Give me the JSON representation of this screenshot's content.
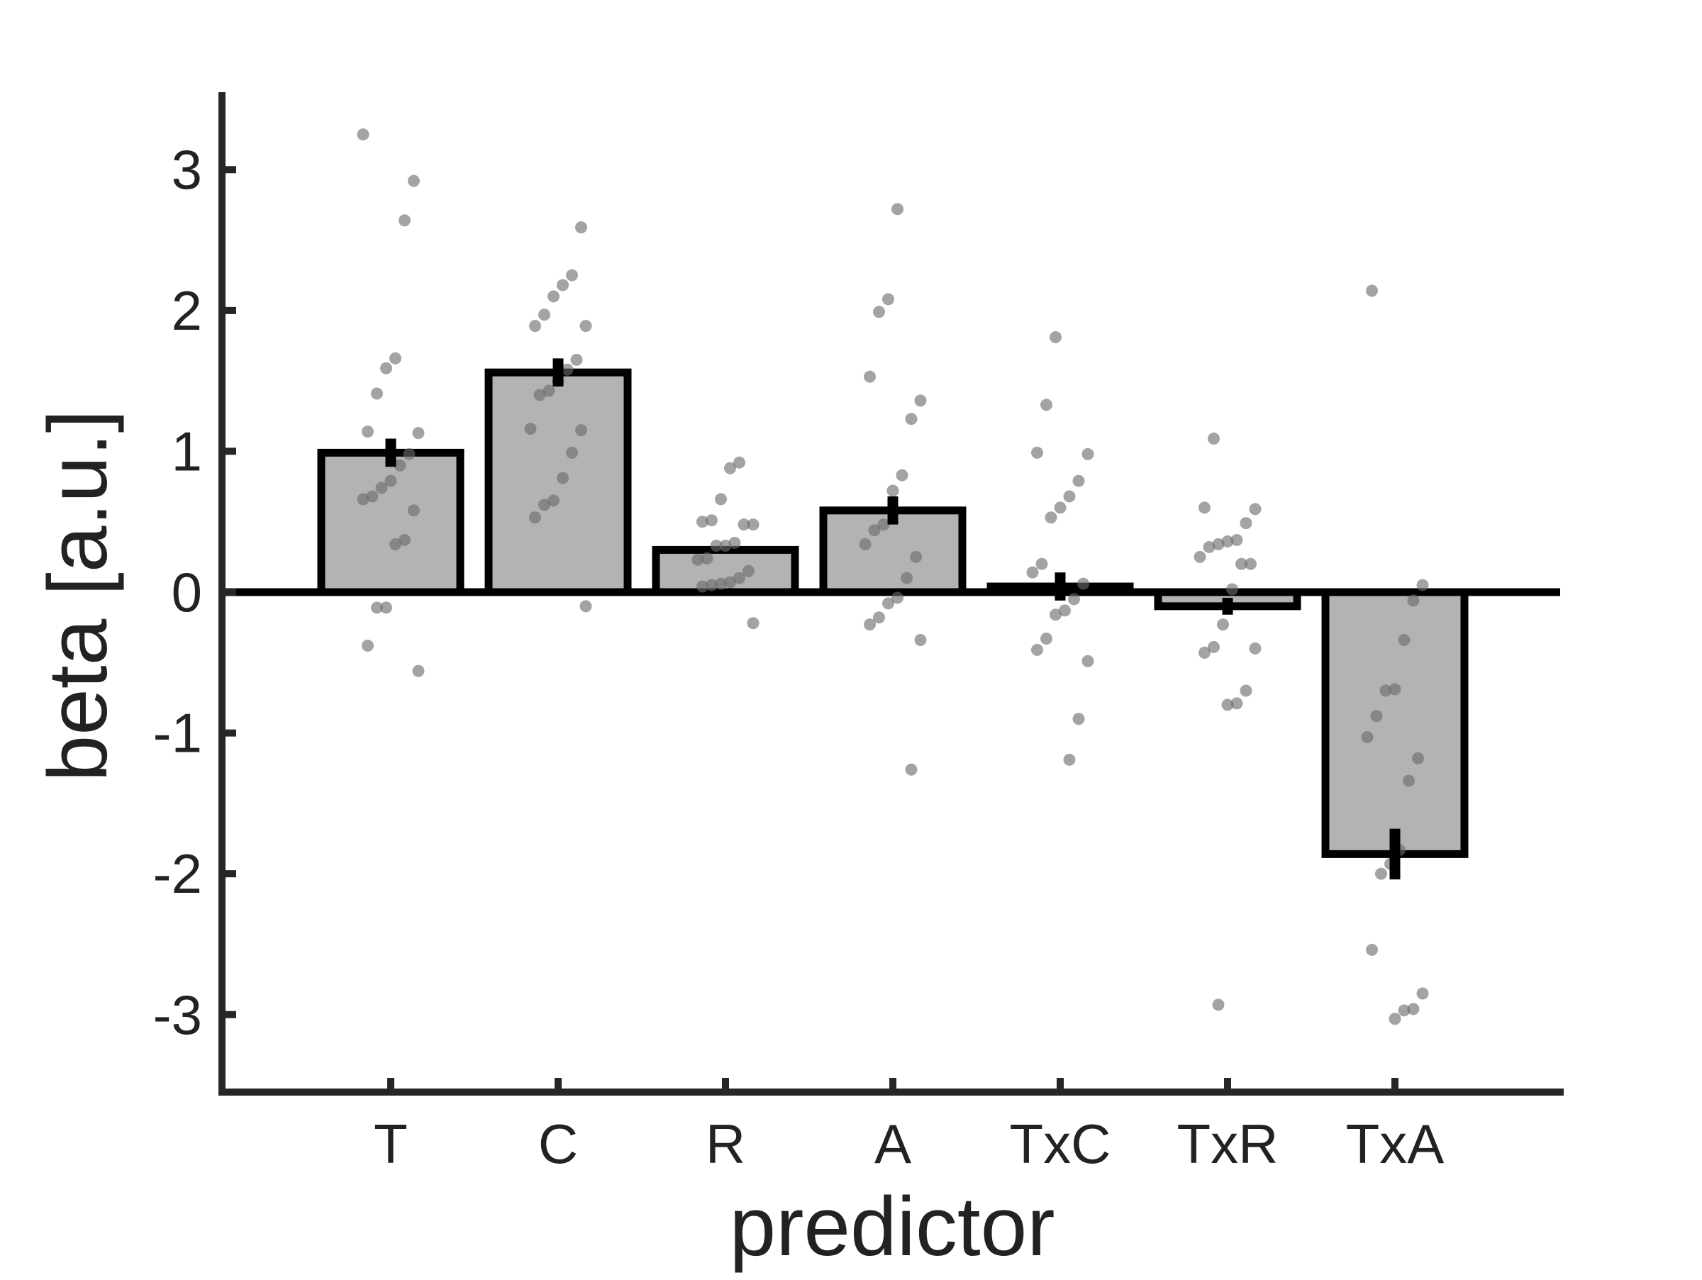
{
  "chart_data": {
    "type": "bar",
    "title": "",
    "xlabel": "predictor",
    "ylabel": "beta [a.u.]",
    "ylim": [
      -3.55,
      3.55
    ],
    "yticks": [
      -3,
      -2,
      -1,
      0,
      1,
      2,
      3
    ],
    "ytick_labels": [
      "-3",
      "-2",
      "-1",
      "0",
      "1",
      "2",
      "3"
    ],
    "categories": [
      "T",
      "C",
      "R",
      "A",
      "TxC",
      "TxR",
      "TxA"
    ],
    "values": [
      0.99,
      1.56,
      0.3,
      0.58,
      0.04,
      -0.1,
      -1.86
    ],
    "errors": [
      0.1,
      0.1,
      0.0,
      0.1,
      0.1,
      0.06,
      0.18
    ],
    "points": [
      [
        3.25,
        2.92,
        2.64,
        1.66,
        1.59,
        1.41,
        1.14,
        1.13,
        0.98,
        0.9,
        0.79,
        0.74,
        0.68,
        0.66,
        0.58,
        0.37,
        0.34,
        -0.11,
        -0.11,
        -0.38,
        -0.56
      ],
      [
        2.59,
        2.25,
        2.18,
        2.1,
        1.97,
        1.89,
        1.89,
        1.65,
        1.58,
        1.5,
        1.43,
        1.4,
        1.16,
        1.15,
        0.99,
        0.81,
        0.65,
        0.62,
        0.53,
        -0.1
      ],
      [
        0.92,
        0.88,
        0.66,
        0.51,
        0.5,
        0.48,
        0.48,
        0.35,
        0.33,
        0.33,
        0.24,
        0.23,
        0.15,
        0.1,
        0.07,
        0.06,
        0.05,
        0.04,
        -0.22
      ],
      [
        2.72,
        2.08,
        1.99,
        1.53,
        1.36,
        1.23,
        0.83,
        0.72,
        0.48,
        0.44,
        0.34,
        0.25,
        0.1,
        -0.04,
        -0.08,
        -0.18,
        -0.23,
        -0.34,
        -1.26
      ],
      [
        1.81,
        1.33,
        0.99,
        0.98,
        0.79,
        0.68,
        0.6,
        0.53,
        0.2,
        0.14,
        0.06,
        -0.05,
        -0.13,
        -0.16,
        -0.33,
        -0.41,
        -0.49,
        -0.9,
        -1.19
      ],
      [
        1.09,
        0.6,
        0.59,
        0.49,
        0.37,
        0.36,
        0.34,
        0.32,
        0.25,
        0.2,
        0.2,
        0.02,
        -0.23,
        -0.39,
        -0.43,
        -0.4,
        -0.7,
        -0.79,
        -0.8,
        -2.93
      ],
      [
        2.14,
        0.05,
        -0.06,
        -0.34,
        -0.69,
        -0.7,
        -0.88,
        -1.03,
        -1.18,
        -1.34,
        -1.83,
        -1.93,
        -2.0,
        -2.54,
        -2.85,
        -2.96,
        -2.97,
        -3.03
      ]
    ],
    "colors": {
      "bar_fill": "#b3b3b3",
      "bar_edge": "#000000",
      "points": "#6b6b6b",
      "axis": "#262626"
    },
    "grid": false,
    "legend": "none"
  }
}
